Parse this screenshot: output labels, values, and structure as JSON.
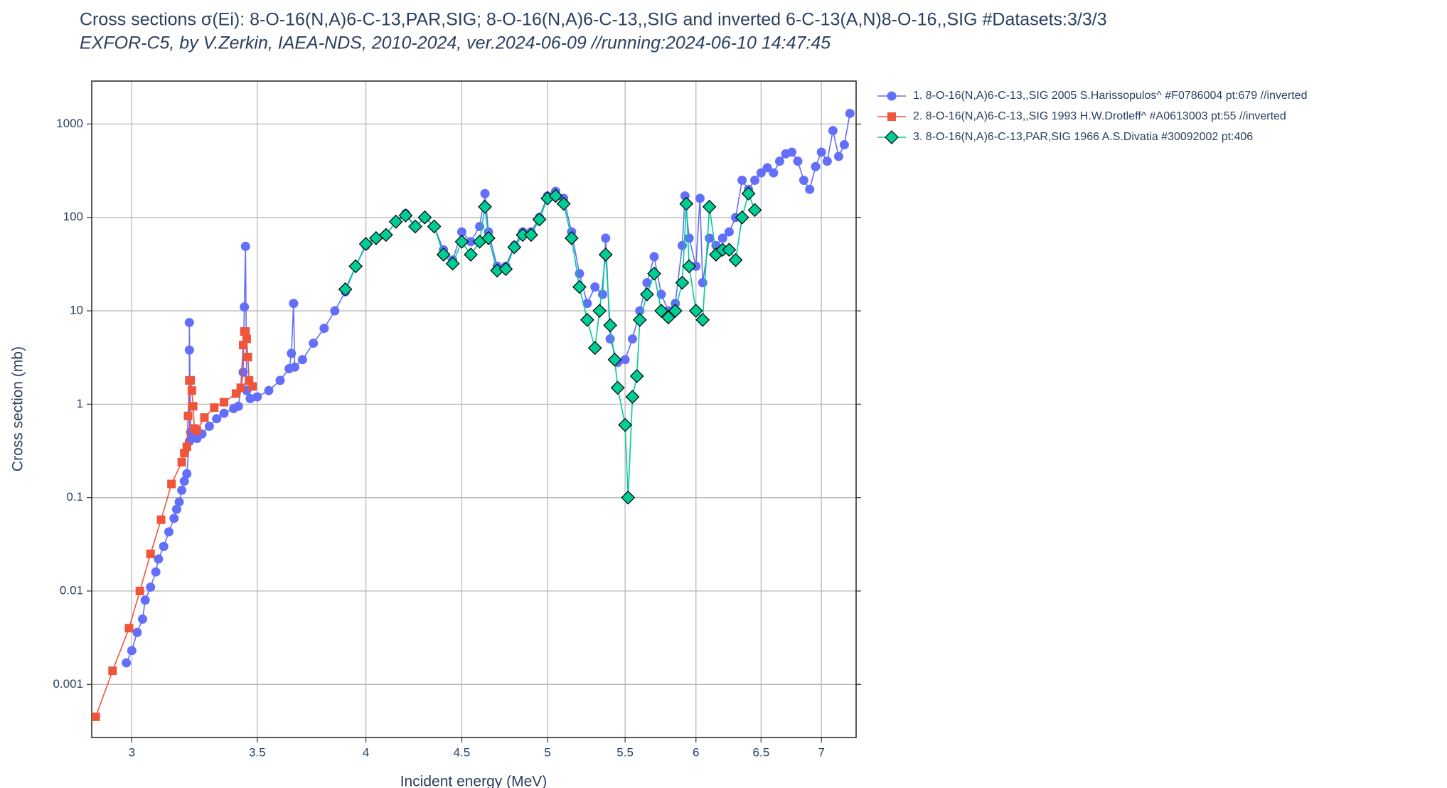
{
  "chart_data": {
    "type": "line",
    "title": "Cross sections σ(Ei): 8-O-16(N,A)6-C-13,PAR,SIG; 8-O-16(N,A)6-C-13,,SIG and inverted 6-C-13(A,N)8-O-16,,SIG #Datasets:3/3/3",
    "subtitle": "EXFOR-C5, by V.Zerkin, IAEA-NDS, 2010-2024, ver.2024-06-09 //running:2024-06-10 14:47:45",
    "x_label": "Incident energy (MeV)",
    "y_label": "Cross section (mb)",
    "xlog": true,
    "ylog": true,
    "grid": true,
    "legend": "outside-right",
    "xlim": [
      2.856,
      7.305
    ],
    "ylim": [
      0.00027,
      2884
    ],
    "xticks": [
      3,
      3.5,
      4,
      4.5,
      5,
      5.5,
      6,
      6.5,
      7
    ],
    "yticks": [
      0.001,
      0.01,
      0.1,
      1,
      10,
      100,
      1000
    ],
    "series": [
      {
        "name": "1. 8-O-16(N,A)6-C-13,,SIG 2005 S.Harissopulos^ #F0786004 pt:679 //inverted",
        "color": "#636efa",
        "marker": "circle",
        "x": [
          2.98,
          3.0,
          3.02,
          3.04,
          3.05,
          3.07,
          3.09,
          3.1,
          3.12,
          3.14,
          3.16,
          3.17,
          3.18,
          3.19,
          3.2,
          3.21,
          3.22,
          3.22,
          3.22,
          3.225,
          3.23,
          3.25,
          3.27,
          3.3,
          3.33,
          3.36,
          3.4,
          3.42,
          3.44,
          3.445,
          3.45,
          3.455,
          3.47,
          3.5,
          3.55,
          3.6,
          3.64,
          3.65,
          3.66,
          3.665,
          3.7,
          3.75,
          3.8,
          3.85,
          3.9,
          3.95,
          4.0,
          4.05,
          4.1,
          4.15,
          4.2,
          4.25,
          4.3,
          4.35,
          4.4,
          4.45,
          4.5,
          4.55,
          4.6,
          4.63,
          4.65,
          4.7,
          4.75,
          4.8,
          4.85,
          4.9,
          4.95,
          5.0,
          5.05,
          5.1,
          5.15,
          5.2,
          5.25,
          5.3,
          5.35,
          5.37,
          5.4,
          5.45,
          5.5,
          5.55,
          5.6,
          5.65,
          5.7,
          5.75,
          5.8,
          5.85,
          5.9,
          5.92,
          5.95,
          6.0,
          6.03,
          6.05,
          6.1,
          6.15,
          6.2,
          6.25,
          6.3,
          6.35,
          6.4,
          6.45,
          6.5,
          6.55,
          6.6,
          6.65,
          6.7,
          6.75,
          6.8,
          6.85,
          6.9,
          6.95,
          7.0,
          7.05,
          7.1,
          7.15,
          7.2,
          7.25
        ],
        "values": [
          0.0017,
          0.0023,
          0.0036,
          0.005,
          0.008,
          0.011,
          0.016,
          0.022,
          0.03,
          0.043,
          0.06,
          0.075,
          0.09,
          0.12,
          0.15,
          0.18,
          0.4,
          3.8,
          7.5,
          0.5,
          0.45,
          0.43,
          0.48,
          0.58,
          0.7,
          0.8,
          0.9,
          0.95,
          2.2,
          11,
          49,
          1.4,
          1.15,
          1.2,
          1.4,
          1.8,
          2.4,
          3.5,
          12,
          2.5,
          3,
          4.5,
          6.5,
          10,
          16,
          30,
          50,
          60,
          65,
          90,
          110,
          80,
          100,
          80,
          45,
          35,
          70,
          55,
          80,
          180,
          70,
          30,
          30,
          50,
          70,
          70,
          100,
          170,
          190,
          160,
          70,
          25,
          12,
          18,
          15,
          60,
          5,
          2.8,
          3,
          5,
          10,
          20,
          38,
          15,
          10,
          12,
          50,
          170,
          60,
          30,
          160,
          20,
          60,
          50,
          60,
          70,
          100,
          250,
          200,
          250,
          300,
          340,
          300,
          400,
          480,
          500,
          400,
          250,
          200,
          350,
          500,
          400,
          850,
          450,
          600,
          1300
        ]
      },
      {
        "name": "2. 8-O-16(N,A)6-C-13,,SIG 1993 H.W.Drotleff^ #A0613003 pt:55 //inverted",
        "color": "#ef553b",
        "marker": "square",
        "x": [
          2.87,
          2.93,
          2.99,
          3.03,
          3.07,
          3.11,
          3.15,
          3.19,
          3.2,
          3.21,
          3.215,
          3.22,
          3.225,
          3.23,
          3.235,
          3.24,
          3.25,
          3.28,
          3.32,
          3.36,
          3.41,
          3.43,
          3.44,
          3.445,
          3.45,
          3.455,
          3.46,
          3.465,
          3.48
        ],
        "values": [
          0.00045,
          0.0014,
          0.004,
          0.01,
          0.025,
          0.058,
          0.14,
          0.24,
          0.3,
          0.35,
          0.75,
          1.8,
          1.8,
          1.4,
          0.95,
          0.55,
          0.52,
          0.72,
          0.92,
          1.05,
          1.3,
          1.5,
          4.3,
          6,
          6,
          5,
          3.2,
          1.8,
          1.55
        ]
      },
      {
        "name": "3. 8-O-16(N,A)6-C-13,PAR,SIG 1966 A.S.Divatia #30092002 pt:406",
        "color": "#00cc96",
        "marker": "diamond",
        "x": [
          3.9,
          3.95,
          4.0,
          4.05,
          4.1,
          4.15,
          4.2,
          4.25,
          4.3,
          4.35,
          4.4,
          4.45,
          4.5,
          4.55,
          4.6,
          4.63,
          4.65,
          4.7,
          4.75,
          4.8,
          4.85,
          4.9,
          4.95,
          5.0,
          5.05,
          5.1,
          5.15,
          5.2,
          5.25,
          5.3,
          5.33,
          5.37,
          5.4,
          5.43,
          5.45,
          5.5,
          5.52,
          5.55,
          5.58,
          5.6,
          5.65,
          5.7,
          5.75,
          5.8,
          5.85,
          5.9,
          5.93,
          5.95,
          6.0,
          6.05,
          6.1,
          6.15,
          6.2,
          6.25,
          6.3,
          6.35,
          6.4,
          6.45
        ],
        "values": [
          17,
          30,
          52,
          60,
          65,
          90,
          105,
          80,
          100,
          80,
          40,
          32,
          55,
          40,
          55,
          130,
          60,
          27,
          28,
          48,
          65,
          65,
          95,
          160,
          170,
          140,
          60,
          18,
          8,
          4,
          10,
          40,
          7,
          3,
          1.5,
          0.6,
          0.1,
          1.2,
          2,
          8,
          15,
          25,
          10,
          8.5,
          10,
          20,
          140,
          30,
          10,
          8,
          130,
          40,
          45,
          45,
          35,
          100,
          180,
          120
        ]
      }
    ]
  }
}
